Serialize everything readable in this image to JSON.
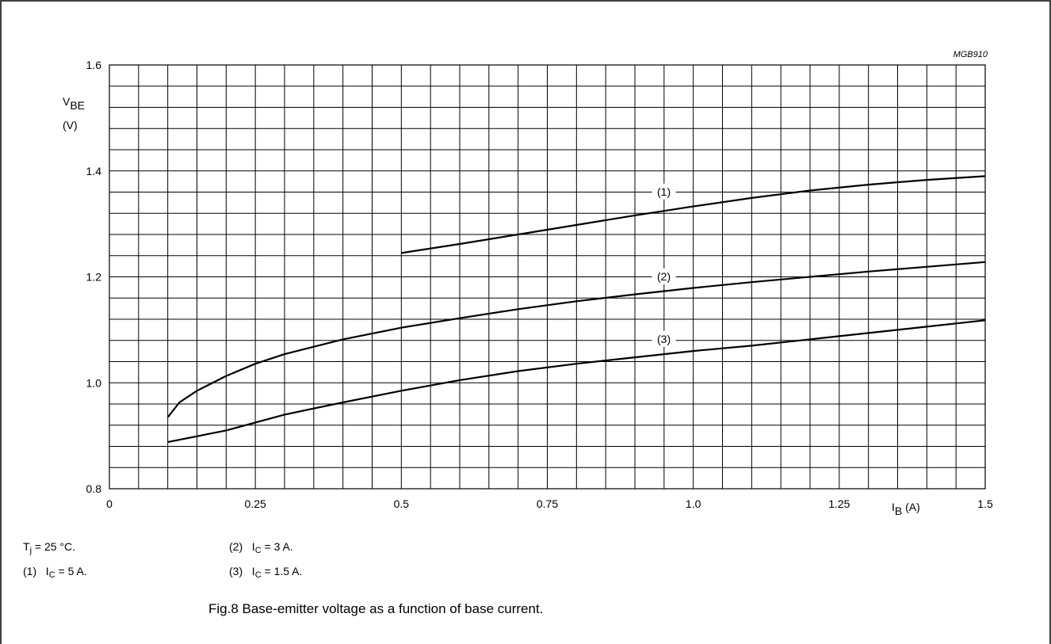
{
  "figure": {
    "code": "MGB910",
    "caption": "Fig.8  Base-emitter voltage as a function of base current."
  },
  "axes": {
    "y": {
      "symbol": "V",
      "subscript": "BE",
      "unit": "(V)"
    },
    "x": {
      "symbol": "I",
      "subscript": "B",
      "unit": "(A)"
    }
  },
  "notes": {
    "tj": {
      "symbol": "T",
      "subscript": "j",
      "text": " = 25 °C."
    },
    "c1": {
      "prefix": "(1)",
      "symbol": "I",
      "subscript": "C",
      "text": " = 5 A."
    },
    "c2": {
      "prefix": "(2)",
      "symbol": "I",
      "subscript": "C",
      "text": " = 3 A."
    },
    "c3": {
      "prefix": "(3)",
      "symbol": "I",
      "subscript": "C",
      "text": " = 1.5 A."
    }
  },
  "chart_data": {
    "type": "line",
    "title": "Fig.8  Base-emitter voltage as a function of base current.",
    "xlabel": "I_B (A)",
    "ylabel": "V_BE (V)",
    "xlim": [
      0,
      1.5
    ],
    "ylim": [
      0.8,
      1.6
    ],
    "grid": true,
    "x_ticks": [
      0,
      0.25,
      0.5,
      0.75,
      1.0,
      1.25,
      1.5
    ],
    "x_tick_labels": [
      "0",
      "0.25",
      "0.5",
      "0.75",
      "1.0",
      "1.25",
      "1.5"
    ],
    "y_ticks": [
      0.8,
      1.0,
      1.2,
      1.4,
      1.6
    ],
    "y_tick_labels": [
      "0.8",
      "1.0",
      "1.2",
      "1.4",
      "1.6"
    ],
    "series": [
      {
        "name": "(1)",
        "label_at": [
          0.97,
          1.355
        ],
        "points": [
          [
            0.5,
            1.245
          ],
          [
            0.6,
            1.262
          ],
          [
            0.7,
            1.28
          ],
          [
            0.8,
            1.298
          ],
          [
            0.9,
            1.316
          ],
          [
            1.0,
            1.333
          ],
          [
            1.1,
            1.349
          ],
          [
            1.2,
            1.363
          ],
          [
            1.3,
            1.374
          ],
          [
            1.4,
            1.383
          ],
          [
            1.5,
            1.39
          ]
        ]
      },
      {
        "name": "(2)",
        "label_at": [
          0.97,
          1.195
        ],
        "points": [
          [
            0.1,
            0.935
          ],
          [
            0.12,
            0.963
          ],
          [
            0.15,
            0.985
          ],
          [
            0.2,
            1.013
          ],
          [
            0.25,
            1.036
          ],
          [
            0.3,
            1.054
          ],
          [
            0.4,
            1.082
          ],
          [
            0.5,
            1.104
          ],
          [
            0.6,
            1.122
          ],
          [
            0.7,
            1.139
          ],
          [
            0.8,
            1.154
          ],
          [
            0.9,
            1.167
          ],
          [
            1.0,
            1.179
          ],
          [
            1.1,
            1.19
          ],
          [
            1.2,
            1.2
          ],
          [
            1.3,
            1.21
          ],
          [
            1.4,
            1.219
          ],
          [
            1.5,
            1.228
          ]
        ]
      },
      {
        "name": "(3)",
        "label_at": [
          0.97,
          1.077
        ],
        "points": [
          [
            0.1,
            0.888
          ],
          [
            0.2,
            0.91
          ],
          [
            0.3,
            0.94
          ],
          [
            0.4,
            0.963
          ],
          [
            0.5,
            0.985
          ],
          [
            0.6,
            1.005
          ],
          [
            0.7,
            1.022
          ],
          [
            0.8,
            1.036
          ],
          [
            0.9,
            1.048
          ],
          [
            1.0,
            1.06
          ],
          [
            1.1,
            1.07
          ],
          [
            1.2,
            1.082
          ],
          [
            1.3,
            1.094
          ],
          [
            1.4,
            1.106
          ],
          [
            1.5,
            1.118
          ]
        ]
      }
    ]
  }
}
